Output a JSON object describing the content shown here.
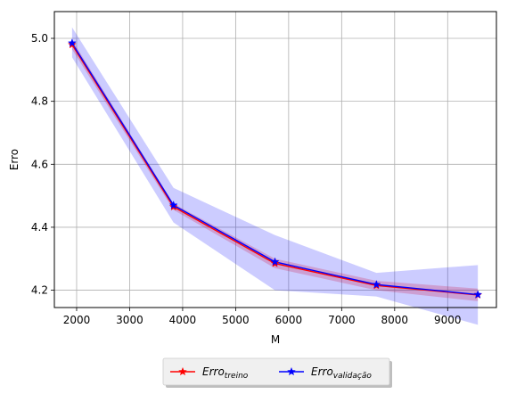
{
  "chart_data": {
    "type": "line",
    "x": [
      1914,
      3828,
      5742,
      7656,
      9570
    ],
    "xlabel": "M",
    "ylabel": "Erro",
    "xlim": [
      1580,
      9920
    ],
    "ylim": [
      4.145,
      5.085
    ],
    "xticks": [
      2000,
      3000,
      4000,
      5000,
      6000,
      7000,
      8000,
      9000
    ],
    "yticks": [
      4.2,
      4.4,
      4.6,
      4.8,
      5.0
    ],
    "xtick_labels": [
      "2000",
      "3000",
      "4000",
      "5000",
      "6000",
      "7000",
      "8000",
      "9000"
    ],
    "ytick_labels": [
      "4.2",
      "4.4",
      "4.6",
      "4.8",
      "5.0"
    ],
    "grid": true,
    "legend_position": "bottom-center, below plot",
    "series": [
      {
        "name": "Erro",
        "subscript": "treino",
        "color": "#ff0000",
        "marker": "star",
        "values": [
          4.98,
          4.465,
          4.285,
          4.215,
          4.185
        ],
        "band_lower": [
          4.965,
          4.455,
          4.27,
          4.2,
          4.165
        ],
        "band_upper": [
          4.995,
          4.475,
          4.3,
          4.23,
          4.205
        ],
        "band_color": "#ff0000"
      },
      {
        "name": "Erro",
        "subscript": "validação",
        "color": "#0000ff",
        "marker": "star",
        "values": [
          4.985,
          4.47,
          4.29,
          4.218,
          4.186
        ],
        "band_lower": [
          4.94,
          4.415,
          4.2,
          4.18,
          4.09
        ],
        "band_upper": [
          5.035,
          4.525,
          4.375,
          4.255,
          4.28
        ],
        "band_color": "#0000ff"
      }
    ]
  }
}
